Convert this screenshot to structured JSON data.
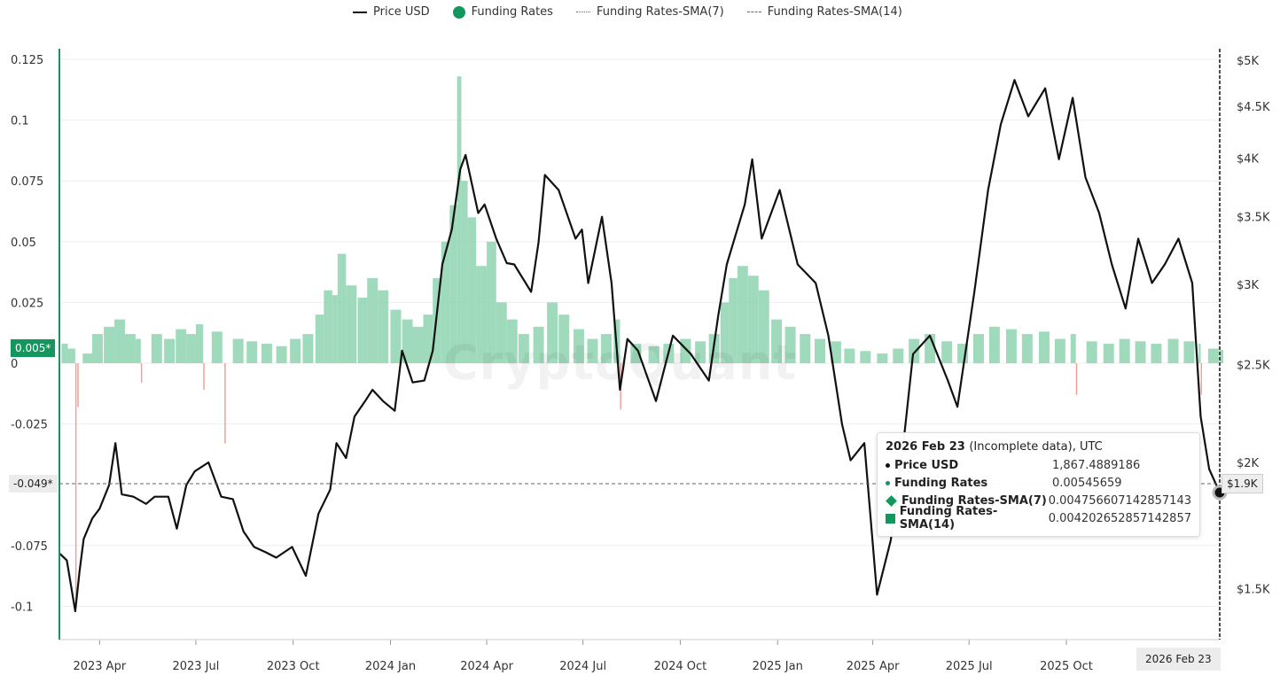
{
  "chart_data": {
    "type": "bar+line",
    "title": "",
    "legend": {
      "placement": "top-center",
      "items": [
        "Price USD",
        "Funding Rates",
        "Funding Rates-SMA(7)",
        "Funding Rates-SMA(14)"
      ]
    },
    "left_axis": {
      "ticks": [
        "0.125",
        "0.1",
        "0.075",
        "0.05",
        "0.025",
        "0",
        "-0.025",
        "-0.075",
        "-0.1"
      ],
      "tick_values": [
        0.125,
        0.1,
        0.075,
        0.05,
        0.025,
        0,
        -0.025,
        -0.075,
        -0.1
      ],
      "range": [
        -0.114,
        0.128
      ]
    },
    "right_axis": {
      "scale": "log",
      "ticks": [
        "$5K",
        "$4.5K",
        "$4K",
        "$3.5K",
        "$3K",
        "$2.5K",
        "$2K",
        "$1.5K"
      ],
      "tick_values": [
        5000,
        4500,
        4000,
        3500,
        3000,
        2500,
        2000,
        1500
      ],
      "range": [
        1280,
        5000
      ]
    },
    "x_axis": {
      "ticks": [
        "2023 Apr",
        "2023 Jul",
        "2023 Oct",
        "2024 Jan",
        "2024 Apr",
        "2024 Jul",
        "2024 Oct",
        "2025 Jan",
        "2025 Apr",
        "2025 Jul",
        "2025 Oct"
      ],
      "tick_dates": [
        "2023-04-01",
        "2023-07-01",
        "2023-10-01",
        "2024-01-01",
        "2024-04-01",
        "2024-07-01",
        "2024-10-01",
        "2025-01-01",
        "2025-04-01",
        "2025-07-01",
        "2025-10-01"
      ],
      "range": [
        "2023-02-22",
        "2026-02-23"
      ]
    },
    "price_series": [
      [
        "2023-02-22",
        1626
      ],
      [
        "2023-03-01",
        1600
      ],
      [
        "2023-03-09",
        1425
      ],
      [
        "2023-03-13",
        1560
      ],
      [
        "2023-03-17",
        1680
      ],
      [
        "2023-03-25",
        1760
      ],
      [
        "2023-04-01",
        1800
      ],
      [
        "2023-04-10",
        1900
      ],
      [
        "2023-04-16",
        2090
      ],
      [
        "2023-04-22",
        1860
      ],
      [
        "2023-05-03",
        1850
      ],
      [
        "2023-05-15",
        1820
      ],
      [
        "2023-05-23",
        1850
      ],
      [
        "2023-06-05",
        1850
      ],
      [
        "2023-06-13",
        1720
      ],
      [
        "2023-06-22",
        1900
      ],
      [
        "2023-06-30",
        1960
      ],
      [
        "2023-07-13",
        2000
      ],
      [
        "2023-07-25",
        1850
      ],
      [
        "2023-08-05",
        1840
      ],
      [
        "2023-08-15",
        1710
      ],
      [
        "2023-08-25",
        1650
      ],
      [
        "2023-09-05",
        1630
      ],
      [
        "2023-09-15",
        1610
      ],
      [
        "2023-09-30",
        1650
      ],
      [
        "2023-10-13",
        1545
      ],
      [
        "2023-10-25",
        1780
      ],
      [
        "2023-11-05",
        1880
      ],
      [
        "2023-11-11",
        2090
      ],
      [
        "2023-11-20",
        2020
      ],
      [
        "2023-11-28",
        2220
      ],
      [
        "2023-12-08",
        2300
      ],
      [
        "2023-12-15",
        2360
      ],
      [
        "2023-12-25",
        2300
      ],
      [
        "2024-01-05",
        2250
      ],
      [
        "2024-01-12",
        2580
      ],
      [
        "2024-01-22",
        2400
      ],
      [
        "2024-02-02",
        2410
      ],
      [
        "2024-02-10",
        2580
      ],
      [
        "2024-02-19",
        3140
      ],
      [
        "2024-02-28",
        3400
      ],
      [
        "2024-03-07",
        3900
      ],
      [
        "2024-03-12",
        4030
      ],
      [
        "2024-03-24",
        3530
      ],
      [
        "2024-03-30",
        3600
      ],
      [
        "2024-04-10",
        3330
      ],
      [
        "2024-04-20",
        3150
      ],
      [
        "2024-04-27",
        3140
      ],
      [
        "2024-05-13",
        2950
      ],
      [
        "2024-05-20",
        3300
      ],
      [
        "2024-05-26",
        3850
      ],
      [
        "2024-06-08",
        3720
      ],
      [
        "2024-06-24",
        3330
      ],
      [
        "2024-06-30",
        3400
      ],
      [
        "2024-07-06",
        3010
      ],
      [
        "2024-07-19",
        3500
      ],
      [
        "2024-07-28",
        3010
      ],
      [
        "2024-08-05",
        2360
      ],
      [
        "2024-08-12",
        2650
      ],
      [
        "2024-08-22",
        2580
      ],
      [
        "2024-09-08",
        2300
      ],
      [
        "2024-09-24",
        2670
      ],
      [
        "2024-10-11",
        2560
      ],
      [
        "2024-10-28",
        2410
      ],
      [
        "2024-11-06",
        2800
      ],
      [
        "2024-11-14",
        3140
      ],
      [
        "2024-12-01",
        3600
      ],
      [
        "2024-12-08",
        3990
      ],
      [
        "2024-12-17",
        3330
      ],
      [
        "2025-01-03",
        3720
      ],
      [
        "2025-01-20",
        3140
      ],
      [
        "2025-02-06",
        3010
      ],
      [
        "2025-02-18",
        2670
      ],
      [
        "2025-03-03",
        2180
      ],
      [
        "2025-03-11",
        2010
      ],
      [
        "2025-03-24",
        2090
      ],
      [
        "2025-04-05",
        1480
      ],
      [
        "2025-04-18",
        1675
      ],
      [
        "2025-04-30",
        2090
      ],
      [
        "2025-05-09",
        2560
      ],
      [
        "2025-05-25",
        2670
      ],
      [
        "2025-06-11",
        2410
      ],
      [
        "2025-06-20",
        2270
      ],
      [
        "2025-07-06",
        2950
      ],
      [
        "2025-07-19",
        3720
      ],
      [
        "2025-07-31",
        4320
      ],
      [
        "2025-08-13",
        4780
      ],
      [
        "2025-08-26",
        4400
      ],
      [
        "2025-09-11",
        4690
      ],
      [
        "2025-09-24",
        3990
      ],
      [
        "2025-10-07",
        4590
      ],
      [
        "2025-10-19",
        3830
      ],
      [
        "2025-11-01",
        3530
      ],
      [
        "2025-11-13",
        3140
      ],
      [
        "2025-11-26",
        2840
      ],
      [
        "2025-12-08",
        3330
      ],
      [
        "2025-12-21",
        3010
      ],
      [
        "2026-01-02",
        3140
      ],
      [
        "2026-01-15",
        3330
      ],
      [
        "2026-01-28",
        3010
      ],
      [
        "2026-02-05",
        2220
      ],
      [
        "2026-02-13",
        1970
      ],
      [
        "2026-02-23",
        1867.49
      ]
    ],
    "funding_series": [
      [
        "2023-02-24",
        0.008
      ],
      [
        "2023-03-02",
        0.006
      ],
      [
        "2023-03-09",
        -0.1
      ],
      [
        "2023-03-11",
        -0.018
      ],
      [
        "2023-03-16",
        0.004
      ],
      [
        "2023-03-25",
        0.012
      ],
      [
        "2023-04-05",
        0.015
      ],
      [
        "2023-04-15",
        0.018
      ],
      [
        "2023-04-25",
        0.012
      ],
      [
        "2023-05-05",
        0.01
      ],
      [
        "2023-05-10",
        -0.008
      ],
      [
        "2023-05-20",
        0.012
      ],
      [
        "2023-06-01",
        0.01
      ],
      [
        "2023-06-12",
        0.014
      ],
      [
        "2023-06-22",
        0.012
      ],
      [
        "2023-07-01",
        0.016
      ],
      [
        "2023-07-08",
        -0.011
      ],
      [
        "2023-07-16",
        0.013
      ],
      [
        "2023-07-28",
        -0.033
      ],
      [
        "2023-08-05",
        0.01
      ],
      [
        "2023-08-18",
        0.009
      ],
      [
        "2023-09-01",
        0.008
      ],
      [
        "2023-09-15",
        0.007
      ],
      [
        "2023-09-28",
        0.01
      ],
      [
        "2023-10-10",
        0.012
      ],
      [
        "2023-10-22",
        0.02
      ],
      [
        "2023-10-30",
        0.03
      ],
      [
        "2023-11-07",
        0.028
      ],
      [
        "2023-11-12",
        0.045
      ],
      [
        "2023-11-20",
        0.032
      ],
      [
        "2023-12-01",
        0.027
      ],
      [
        "2023-12-10",
        0.035
      ],
      [
        "2023-12-20",
        0.03
      ],
      [
        "2024-01-01",
        0.022
      ],
      [
        "2024-01-12",
        0.018
      ],
      [
        "2024-01-22",
        0.015
      ],
      [
        "2024-02-01",
        0.02
      ],
      [
        "2024-02-10",
        0.035
      ],
      [
        "2024-02-18",
        0.05
      ],
      [
        "2024-02-26",
        0.065
      ],
      [
        "2024-03-04",
        0.118
      ],
      [
        "2024-03-08",
        0.075
      ],
      [
        "2024-03-14",
        0.06
      ],
      [
        "2024-03-22",
        0.04
      ],
      [
        "2024-04-01",
        0.05
      ],
      [
        "2024-04-10",
        0.025
      ],
      [
        "2024-04-20",
        0.018
      ],
      [
        "2024-05-01",
        0.012
      ],
      [
        "2024-05-15",
        0.015
      ],
      [
        "2024-05-28",
        0.025
      ],
      [
        "2024-06-08",
        0.02
      ],
      [
        "2024-06-22",
        0.014
      ],
      [
        "2024-07-05",
        0.01
      ],
      [
        "2024-07-18",
        0.012
      ],
      [
        "2024-07-30",
        0.018
      ],
      [
        "2024-08-05",
        -0.019
      ],
      [
        "2024-08-15",
        0.008
      ],
      [
        "2024-09-01",
        0.007
      ],
      [
        "2024-09-15",
        0.008
      ],
      [
        "2024-10-01",
        0.01
      ],
      [
        "2024-10-15",
        0.009
      ],
      [
        "2024-10-28",
        0.012
      ],
      [
        "2024-11-08",
        0.025
      ],
      [
        "2024-11-16",
        0.035
      ],
      [
        "2024-11-24",
        0.04
      ],
      [
        "2024-12-04",
        0.036
      ],
      [
        "2024-12-14",
        0.03
      ],
      [
        "2024-12-26",
        0.018
      ],
      [
        "2025-01-08",
        0.015
      ],
      [
        "2025-01-22",
        0.012
      ],
      [
        "2025-02-05",
        0.01
      ],
      [
        "2025-02-20",
        0.009
      ],
      [
        "2025-03-05",
        0.006
      ],
      [
        "2025-03-20",
        0.005
      ],
      [
        "2025-04-05",
        0.004
      ],
      [
        "2025-04-20",
        0.006
      ],
      [
        "2025-05-05",
        0.01
      ],
      [
        "2025-05-20",
        0.012
      ],
      [
        "2025-06-05",
        0.009
      ],
      [
        "2025-06-20",
        0.008
      ],
      [
        "2025-07-05",
        0.012
      ],
      [
        "2025-07-20",
        0.015
      ],
      [
        "2025-08-05",
        0.014
      ],
      [
        "2025-08-20",
        0.012
      ],
      [
        "2025-09-05",
        0.013
      ],
      [
        "2025-09-20",
        0.01
      ],
      [
        "2025-10-05",
        0.012
      ],
      [
        "2025-10-10",
        -0.013
      ],
      [
        "2025-10-20",
        0.009
      ],
      [
        "2025-11-05",
        0.008
      ],
      [
        "2025-11-20",
        0.01
      ],
      [
        "2025-12-05",
        0.009
      ],
      [
        "2025-12-20",
        0.008
      ],
      [
        "2026-01-05",
        0.01
      ],
      [
        "2026-01-20",
        0.009
      ],
      [
        "2026-02-03",
        0.008
      ],
      [
        "2026-02-05",
        -0.013
      ],
      [
        "2026-02-12",
        0.006
      ],
      [
        "2026-02-23",
        0.00545659
      ]
    ],
    "crosshair_left_label": "0.005*",
    "crosshair_price_left_label": "-0.049*",
    "crosshair_price_right_label": "$1.9K",
    "crosshair_date_label": "2026 Feb 23",
    "colors": {
      "price": "#111111",
      "funding_pos": "#8fd3b0",
      "funding_neg": "#f0a29a",
      "accent": "#14975e"
    }
  },
  "legend_labels": {
    "price": "Price USD",
    "funding": "Funding Rates",
    "sma7": "Funding Rates-SMA(7)",
    "sma14": "Funding Rates-SMA(14)"
  },
  "watermark": "CryptoQuant",
  "tooltip": {
    "date": "2026 Feb 23",
    "note": "(Incomplete data), UTC",
    "rows": [
      {
        "label": "Price USD",
        "value": "1,867.4889186"
      },
      {
        "label": "Funding Rates",
        "value": "0.00545659"
      },
      {
        "label": "Funding Rates-SMA(7)",
        "value": "0.004756607142857143"
      },
      {
        "label": "Funding Rates-SMA(14)",
        "value": "0.004202652857142857"
      }
    ]
  }
}
